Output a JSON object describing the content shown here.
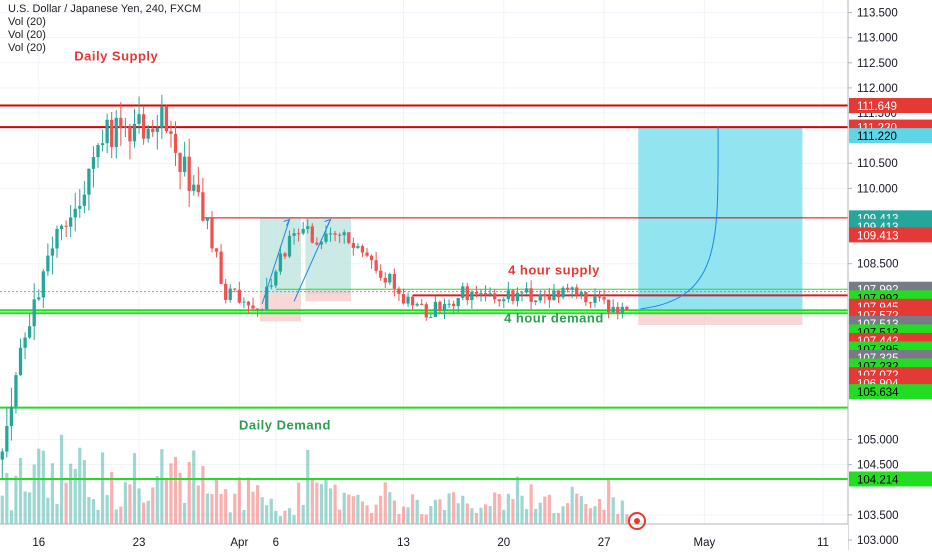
{
  "legend": {
    "title": "U.S. Dollar / Japanese Yen, 240, FXCM",
    "volume_studies": [
      "Vol (20)",
      "Vol (20)",
      "Vol (20)"
    ]
  },
  "colors": {
    "up": "#26a69a",
    "down": "#ef5350",
    "red_line": "#e00000",
    "green_line": "#22dd22",
    "cyan_box": "#7fdfee",
    "pink_box": "#f8caca",
    "teal_box": "#b9e3de",
    "supply_text": "#e53935",
    "demand_text": "#2e9e4f"
  },
  "chart_data": {
    "type": "candlestick",
    "symbol": "U.S. Dollar / Japanese Yen",
    "interval": "240",
    "source": "FXCM",
    "x_ticks": [
      {
        "label": "16",
        "bar": 8
      },
      {
        "label": "23",
        "bar": 30
      },
      {
        "label": "Apr",
        "bar": 52
      },
      {
        "label": "6",
        "bar": 60
      },
      {
        "label": "13",
        "bar": 88
      },
      {
        "label": "20",
        "bar": 110
      },
      {
        "label": "27",
        "bar": 132
      },
      {
        "label": "May",
        "bar": 154
      },
      {
        "label": "11",
        "bar": 180
      }
    ],
    "y_range": [
      102.8,
      113.75
    ],
    "y_ticks": [
      "113.500",
      "113.000",
      "112.500",
      "112.000",
      "111.500",
      "110.500",
      "110.000",
      "108.500",
      "105.000",
      "104.500",
      "103.500",
      "103.000"
    ],
    "total_bars": 186,
    "data_bars": 138,
    "price_path": [
      [
        0,
        104.6
      ],
      [
        6,
        106.9
      ],
      [
        12,
        108.9
      ],
      [
        18,
        109.8
      ],
      [
        24,
        111.1
      ],
      [
        30,
        111.3
      ],
      [
        36,
        111.35
      ],
      [
        42,
        110.2
      ],
      [
        46,
        109.3
      ],
      [
        50,
        107.9
      ],
      [
        54,
        107.8
      ],
      [
        58,
        107.7
      ],
      [
        62,
        108.6
      ],
      [
        66,
        109.2
      ],
      [
        70,
        109.0
      ],
      [
        76,
        109.0
      ],
      [
        80,
        108.6
      ],
      [
        86,
        108.2
      ],
      [
        90,
        107.7
      ],
      [
        94,
        107.5
      ],
      [
        98,
        107.7
      ],
      [
        102,
        107.9
      ],
      [
        108,
        107.8
      ],
      [
        114,
        107.9
      ],
      [
        120,
        107.85
      ],
      [
        126,
        107.9
      ],
      [
        130,
        107.75
      ],
      [
        134,
        107.6
      ],
      [
        137,
        107.55
      ]
    ],
    "volume_scale_max": 1.0,
    "horizontal_levels": [
      {
        "price": 111.649,
        "color": "red",
        "label": "111.649"
      },
      {
        "price": 111.22,
        "color": "red",
        "label": "111.220"
      },
      {
        "price": 109.413,
        "color": "thin-red",
        "label": "109.413"
      },
      {
        "price": 107.992,
        "color": "thin-green",
        "label": "107.992"
      },
      {
        "price": 107.945,
        "color": "red",
        "label": "107.945"
      },
      {
        "price": 107.572,
        "color": "green",
        "label": "107.572"
      },
      {
        "price": 107.513,
        "color": "green",
        "label": "107.513"
      },
      {
        "price": 105.634,
        "color": "green",
        "label": "105.634"
      },
      {
        "price": 104.214,
        "color": "green",
        "label": "104.214"
      }
    ],
    "price_labels": [
      {
        "text": "111.649",
        "price": 111.649,
        "bg": "#e53935",
        "fg": "#ffffff"
      },
      {
        "text": "111.220",
        "price": 111.22,
        "bg": "#e53935",
        "fg": "#ffffff"
      },
      {
        "text": "111.220",
        "price": 111.05,
        "bg": "#5fd5e8",
        "fg": "#000000"
      },
      {
        "text": "109.413",
        "price": 109.413,
        "bg": "#26a69a",
        "fg": "#ffffff"
      },
      {
        "text": "109.413",
        "price": 109.243,
        "bg": "#26a69a",
        "fg": "#ffffff"
      },
      {
        "text": "109.413",
        "price": 109.073,
        "bg": "#e53935",
        "fg": "#ffffff"
      },
      {
        "text": "107.992",
        "price": 107.992,
        "bg": "#787b86",
        "fg": "#ffffff"
      },
      {
        "text": "107.992",
        "price": 107.822,
        "bg": "#22dd22",
        "fg": "#000000"
      },
      {
        "text": "107.945",
        "price": 107.652,
        "bg": "#e53935",
        "fg": "#ffffff"
      },
      {
        "text": "107.572",
        "price": 107.482,
        "bg": "#e53935",
        "fg": "#ffffff"
      },
      {
        "text": "107.513",
        "price": 107.312,
        "bg": "#787b86",
        "fg": "#ffffff"
      },
      {
        "text": "107.513",
        "price": 107.142,
        "bg": "#22dd22",
        "fg": "#000000"
      },
      {
        "text": "107.442",
        "price": 106.972,
        "bg": "#e53935",
        "fg": "#ffffff"
      },
      {
        "text": "107.395",
        "price": 106.802,
        "bg": "#22dd22",
        "fg": "#000000"
      },
      {
        "text": "107.325",
        "price": 106.632,
        "bg": "#787b86",
        "fg": "#ffffff"
      },
      {
        "text": "107.232",
        "price": 106.462,
        "bg": "#22dd22",
        "fg": "#000000"
      },
      {
        "text": "107.072",
        "price": 106.292,
        "bg": "#e53935",
        "fg": "#ffffff"
      },
      {
        "text": "106.904",
        "price": 106.122,
        "bg": "#e53935",
        "fg": "#ffffff"
      },
      {
        "text": "105.634",
        "price": 105.952,
        "bg": "#22dd22",
        "fg": "#000000"
      },
      {
        "text": "104.214",
        "price": 104.214,
        "bg": "#22dd22",
        "fg": "#000000"
      }
    ],
    "zones": [
      {
        "kind": "target-box",
        "bar_from": 140,
        "bar_to": 175,
        "price_from": 107.572,
        "price_to": 111.22,
        "color": "#7fdfee"
      },
      {
        "kind": "stop-box",
        "bar_from": 140,
        "bar_to": 175,
        "price_from": 107.28,
        "price_to": 107.572,
        "color": "#f8caca"
      },
      {
        "kind": "teal-box",
        "bar_from": 57,
        "bar_to": 65,
        "price_from": 107.9,
        "price_to": 109.413,
        "color": "#b9e3de"
      },
      {
        "kind": "teal-box",
        "bar_from": 67,
        "bar_to": 76,
        "price_from": 107.9,
        "price_to": 109.413,
        "color": "#b9e3de"
      },
      {
        "kind": "pink-box",
        "bar_from": 57,
        "bar_to": 65,
        "price_from": 107.35,
        "price_to": 107.9,
        "color": "#f8caca"
      },
      {
        "kind": "pink-box",
        "bar_from": 67,
        "bar_to": 76,
        "price_from": 107.75,
        "price_to": 107.95,
        "color": "#f8caca"
      }
    ],
    "annotations": [
      {
        "text": "Daily Supply",
        "bar": 25,
        "price": 112.55,
        "color": "red"
      },
      {
        "text": "4 hour supply",
        "bar": 121,
        "price": 108.28,
        "color": "red"
      },
      {
        "text": "4 hour demand",
        "bar": 121,
        "price": 107.33,
        "color": "green"
      },
      {
        "text": "Daily Demand",
        "bar": 62,
        "price": 105.2,
        "color": "green"
      }
    ]
  }
}
